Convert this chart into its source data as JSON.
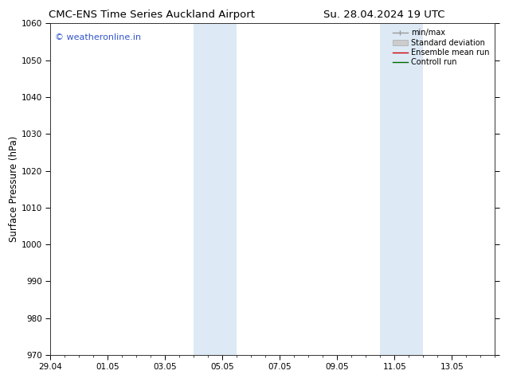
{
  "title_left": "CMC-ENS Time Series Auckland Airport",
  "title_right": "Su. 28.04.2024 19 UTC",
  "ylabel": "Surface Pressure (hPa)",
  "watermark": "© weatheronline.in",
  "watermark_color": "#3355cc",
  "ylim": [
    970,
    1060
  ],
  "yticks": [
    970,
    980,
    990,
    1000,
    1010,
    1020,
    1030,
    1040,
    1050,
    1060
  ],
  "xtick_labels": [
    "29.04",
    "01.05",
    "03.05",
    "05.05",
    "07.05",
    "09.05",
    "11.05",
    "13.05"
  ],
  "xtick_positions": [
    0,
    2,
    4,
    6,
    8,
    10,
    12,
    14
  ],
  "xlim": [
    0,
    15.5
  ],
  "shaded_bands": [
    {
      "x_start": 5.0,
      "x_end": 6.5
    },
    {
      "x_start": 11.5,
      "x_end": 13.0
    }
  ],
  "shaded_color": "#ddeaf5",
  "background_color": "#ffffff",
  "grid_color": "#cccccc",
  "legend_items": [
    {
      "label": "min/max",
      "color": "#aaaaaa",
      "lw": 1.0
    },
    {
      "label": "Standard deviation",
      "color": "#cccccc",
      "lw": 6
    },
    {
      "label": "Ensemble mean run",
      "color": "#cc0000",
      "lw": 1.5
    },
    {
      "label": "Controll run",
      "color": "#006600",
      "lw": 1.5
    }
  ],
  "title_fontsize": 9.5,
  "tick_fontsize": 7.5,
  "ylabel_fontsize": 8.5,
  "watermark_fontsize": 8,
  "legend_fontsize": 7
}
